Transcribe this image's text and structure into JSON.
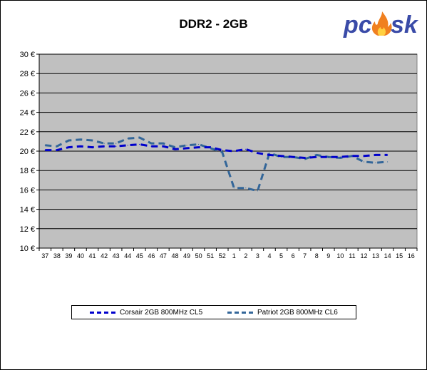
{
  "chart_data": {
    "type": "line",
    "title": "DDR2 - 2GB",
    "x_ticks": [
      "37",
      "38",
      "39",
      "40",
      "41",
      "42",
      "43",
      "44",
      "45",
      "46",
      "47",
      "48",
      "49",
      "50",
      "51",
      "52",
      "1",
      "2",
      "3",
      "4",
      "5",
      "6",
      "7",
      "8",
      "9",
      "10",
      "11",
      "12",
      "13",
      "14",
      "15",
      "16"
    ],
    "y_ticks": [
      "10 €",
      "12 €",
      "14 €",
      "16 €",
      "18 €",
      "20 €",
      "22 €",
      "24 €",
      "26 €",
      "28 €",
      "30 €"
    ],
    "ylim": [
      10,
      30
    ],
    "grid": true,
    "legend_position": "bottom",
    "series": [
      {
        "name": "Corsair 2GB 800MHz CL5",
        "color": "#0000cc",
        "values": [
          20.1,
          20.1,
          20.4,
          20.5,
          20.4,
          20.5,
          20.5,
          20.6,
          20.7,
          20.5,
          20.5,
          20.2,
          20.3,
          20.4,
          20.4,
          20.1,
          20.0,
          20.2,
          19.8,
          19.6,
          19.5,
          19.4,
          19.3,
          19.4,
          19.4,
          19.4,
          19.5,
          19.5,
          19.6,
          19.6,
          null,
          null
        ]
      },
      {
        "name": "Patriot 2GB 800MHz CL6",
        "color": "#336699",
        "values": [
          20.6,
          20.5,
          21.1,
          21.2,
          21.1,
          20.8,
          20.8,
          21.3,
          21.4,
          20.8,
          20.8,
          20.4,
          20.6,
          20.7,
          20.3,
          19.9,
          16.2,
          16.2,
          15.9,
          19.8,
          19.4,
          19.4,
          19.2,
          19.6,
          19.4,
          19.3,
          19.5,
          18.9,
          18.8,
          18.9,
          null,
          null
        ]
      }
    ]
  },
  "logo": {
    "text": "pcask",
    "primary_color": "#3a4ba8",
    "flame_color": "#f08020"
  }
}
